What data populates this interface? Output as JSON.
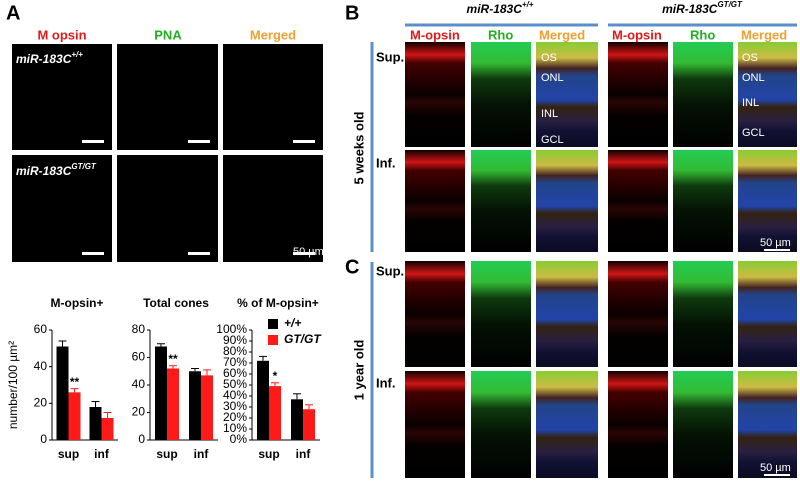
{
  "panel_A": {
    "label": "A",
    "columns": [
      "M opsin",
      "PNA",
      "Merged"
    ],
    "rows": [
      {
        "base": "miR-183C",
        "sup": "+/+"
      },
      {
        "base": "miR-183C",
        "sup": "GT/GT"
      }
    ],
    "scale": "50 µm"
  },
  "panel_B": {
    "label": "B",
    "groups": [
      {
        "base": "miR-183C",
        "sup": "+/+"
      },
      {
        "base": "miR-183C",
        "sup": "GT/GT"
      }
    ],
    "columns": [
      "M-opsin",
      "Rho",
      "Merged"
    ],
    "age": "5 weeks old",
    "rows": [
      "Sup.",
      "Inf."
    ],
    "layers": [
      "OS",
      "ONL",
      "INL",
      "GCL"
    ],
    "scale": "50 µm"
  },
  "panel_C": {
    "label": "C",
    "age": "1 year old",
    "rows": [
      "Sup.",
      "Inf."
    ],
    "scale": "50 µm"
  },
  "chart_data": [
    {
      "type": "bar",
      "title": "M-opsin+",
      "y_label": "number/100 µm²",
      "categories": [
        "sup",
        "inf"
      ],
      "ylim": [
        0,
        60
      ],
      "yticks": [
        0,
        20,
        40,
        60
      ],
      "series": [
        {
          "color": "#000000",
          "values": [
            51,
            18
          ],
          "errors": [
            3,
            3
          ]
        },
        {
          "color": "#ff1a1a",
          "values": [
            26,
            12
          ],
          "errors": [
            2,
            3
          ],
          "labels": [
            "**",
            null
          ]
        }
      ]
    },
    {
      "type": "bar",
      "title": "Total cones",
      "categories": [
        "sup",
        "inf"
      ],
      "ylim": [
        0,
        80
      ],
      "yticks": [
        0,
        20,
        40,
        60,
        80
      ],
      "series": [
        {
          "color": "#000000",
          "values": [
            68,
            50
          ],
          "errors": [
            2,
            2
          ]
        },
        {
          "color": "#ff1a1a",
          "values": [
            52,
            47
          ],
          "errors": [
            2,
            4
          ],
          "labels": [
            "**",
            null
          ]
        }
      ]
    },
    {
      "type": "bar",
      "title": "% of M-opsin+",
      "categories": [
        "sup",
        "inf"
      ],
      "legend": "upper right",
      "ylim": [
        0,
        100
      ],
      "yticks": [
        {
          "value": 0,
          "label": "0%"
        },
        {
          "value": 10,
          "label": "10%"
        },
        {
          "value": 20,
          "label": "20%"
        },
        {
          "value": 30,
          "label": "30%"
        },
        {
          "value": 40,
          "label": "40%"
        },
        {
          "value": 50,
          "label": "50%"
        },
        {
          "value": 60,
          "label": "60%"
        },
        {
          "value": 70,
          "label": "70%"
        },
        {
          "value": 80,
          "label": "80%"
        },
        {
          "value": 90,
          "label": "90%"
        },
        {
          "value": 100,
          "label": "100%"
        }
      ],
      "series": [
        {
          "name": "+/+",
          "color": "#000000",
          "values": [
            72,
            37
          ],
          "errors": [
            4,
            5
          ]
        },
        {
          "name": "GT/GT",
          "color": "#ff1a1a",
          "values": [
            49,
            28
          ],
          "errors": [
            3,
            4
          ],
          "labels": [
            "*",
            null
          ]
        }
      ]
    }
  ]
}
